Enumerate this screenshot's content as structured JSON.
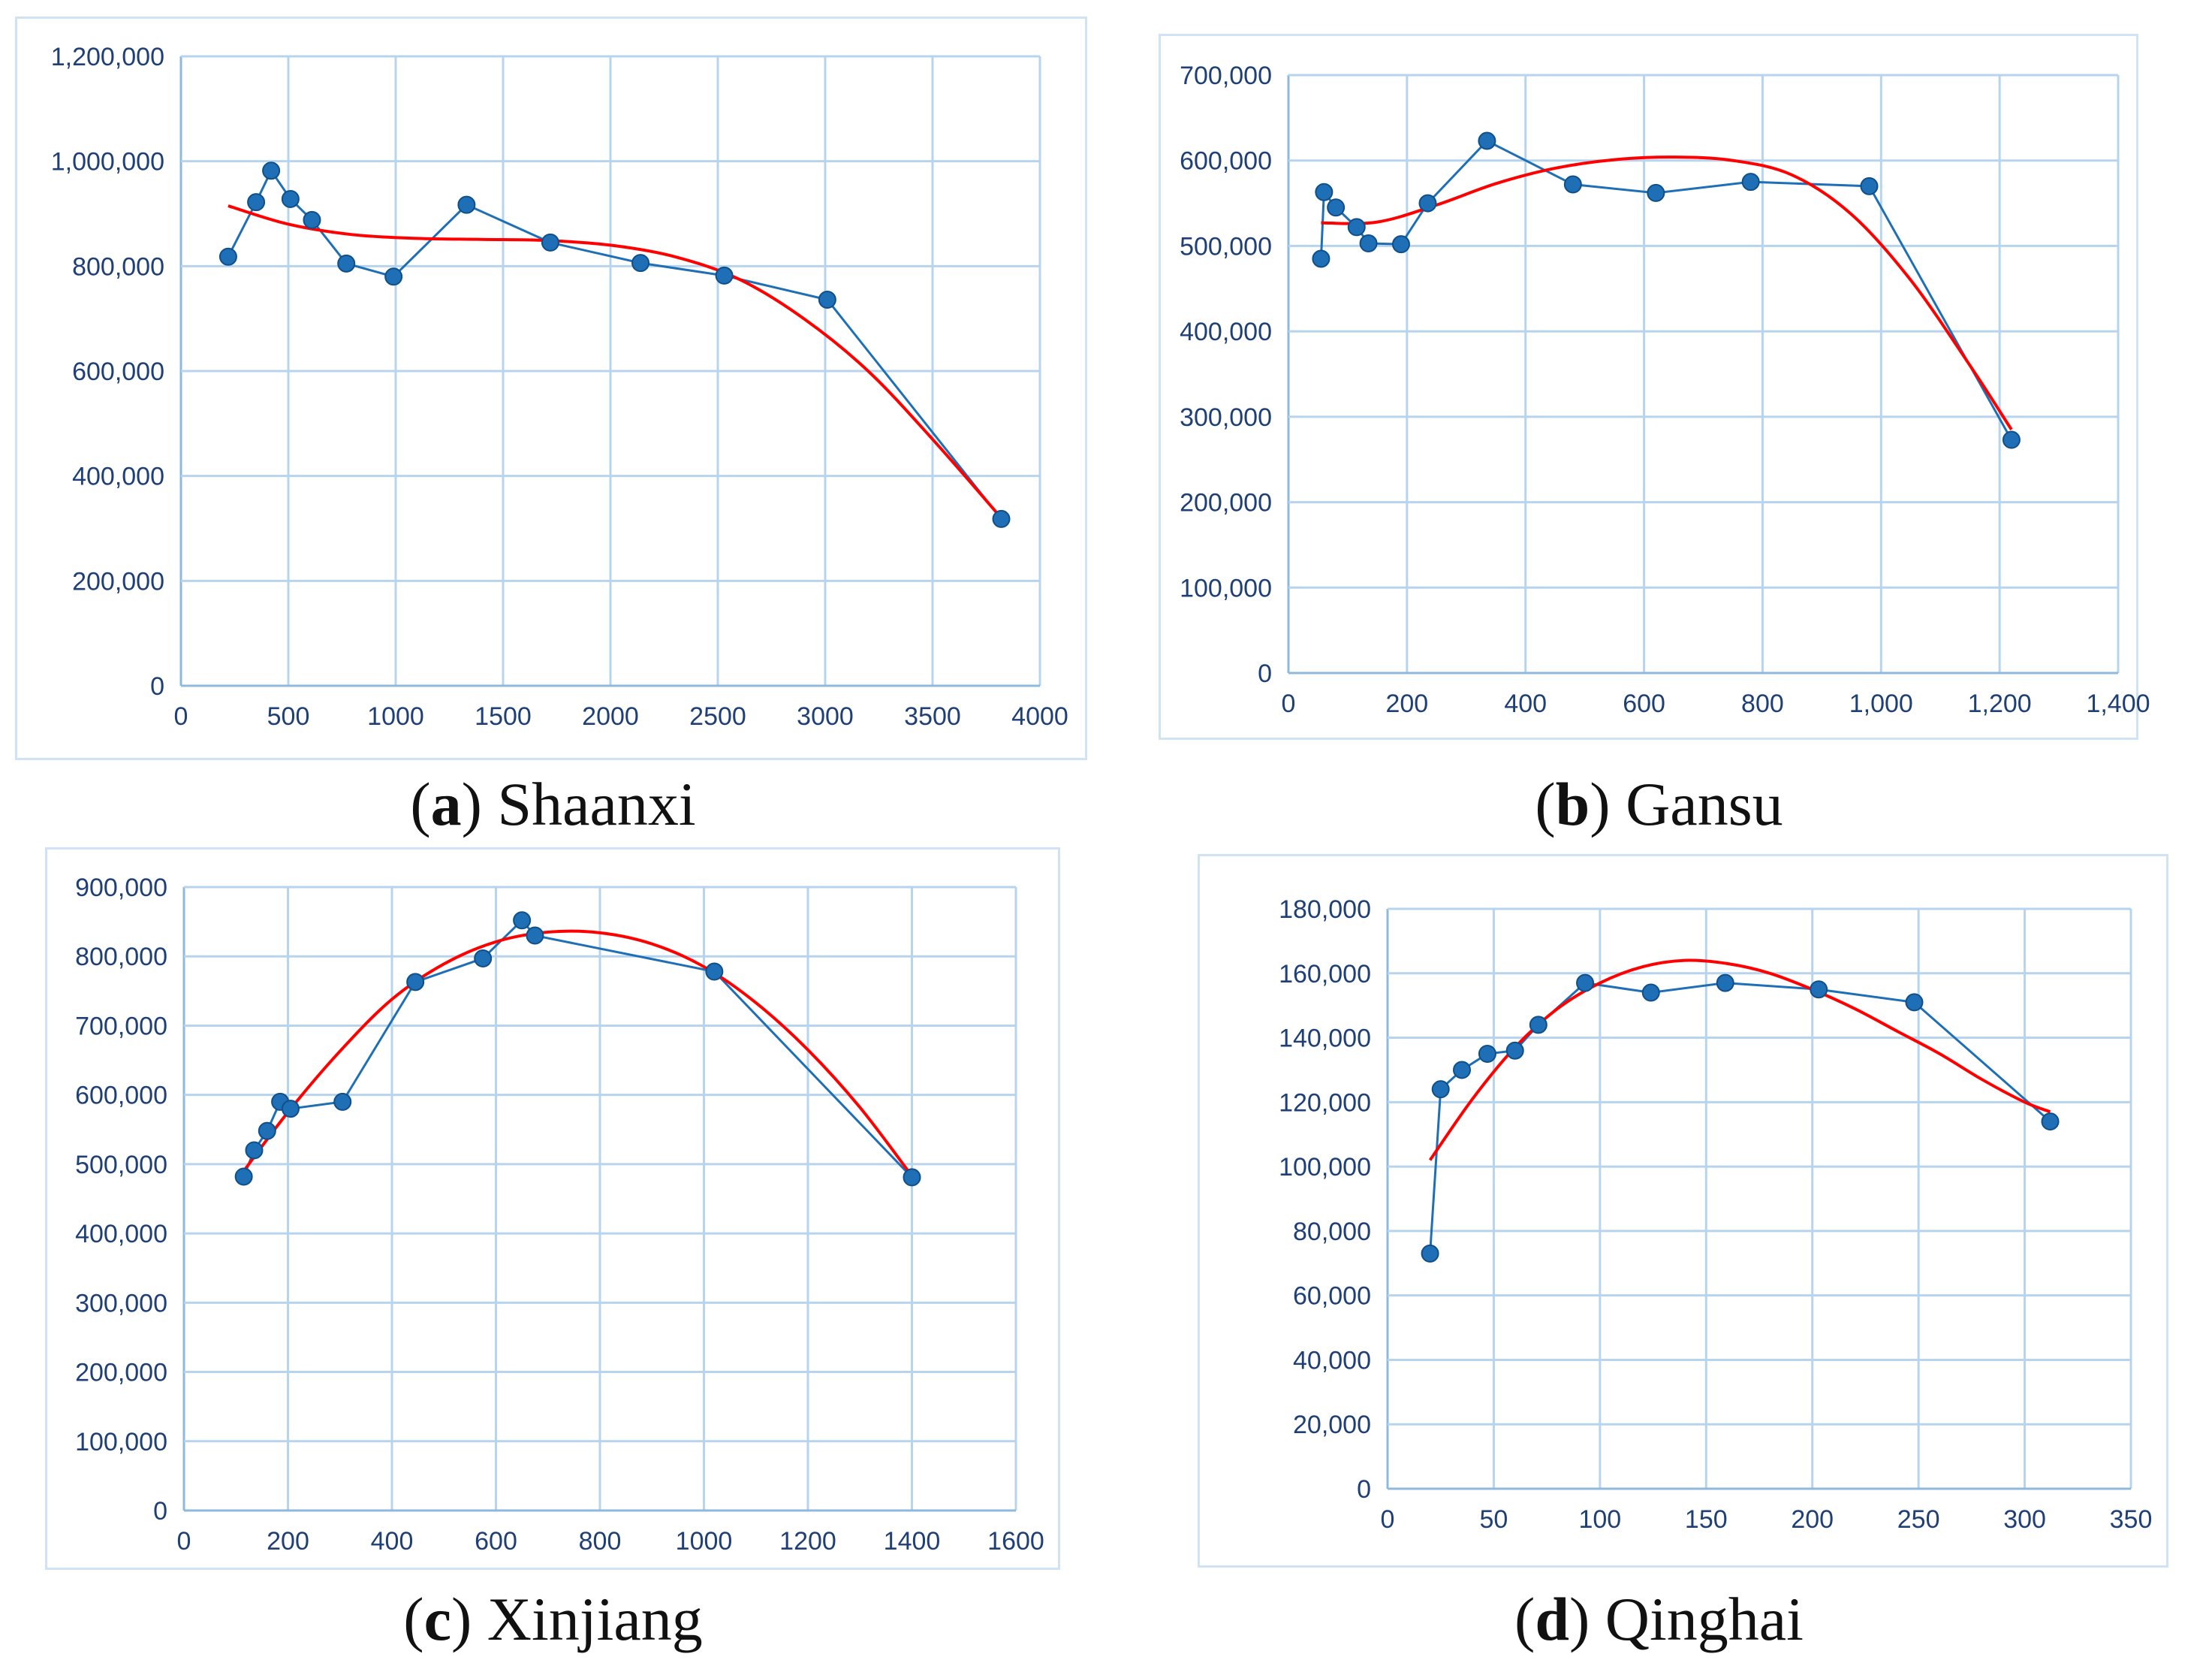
{
  "chart_data": [
    {
      "type": "scatter",
      "panel_letter": "a",
      "title": "Shaanxi",
      "xlabel": "",
      "ylabel": "",
      "xlim": [
        0,
        4000
      ],
      "ylim": [
        0,
        1200000
      ],
      "x_ticks": [
        "0",
        "500",
        "1000",
        "1500",
        "2000",
        "2500",
        "3000",
        "3500",
        "4000"
      ],
      "x_tick_values": [
        0,
        500,
        1000,
        1500,
        2000,
        2500,
        3000,
        3500,
        4000
      ],
      "y_ticks": [
        "0",
        "200,000",
        "400,000",
        "600,000",
        "800,000",
        "1,000,000",
        "1,200,000"
      ],
      "y_tick_values": [
        0,
        200000,
        400000,
        600000,
        800000,
        1000000,
        1200000
      ],
      "series": [
        {
          "name": "observed",
          "color": "#1e6fb5",
          "x": [
            220,
            350,
            420,
            510,
            610,
            770,
            990,
            1330,
            1720,
            2140,
            2530,
            3010,
            3820
          ],
          "y": [
            818000,
            922000,
            982000,
            928000,
            888000,
            805000,
            780000,
            917000,
            845000,
            806000,
            782000,
            736000,
            318000
          ]
        },
        {
          "name": "fit",
          "color": "#ff0000",
          "style": "curve",
          "x": [
            220,
            500,
            800,
            1100,
            1400,
            1700,
            2000,
            2300,
            2600,
            2900,
            3200,
            3500,
            3820
          ],
          "y": [
            915000,
            880000,
            860000,
            853000,
            851000,
            849000,
            840000,
            818000,
            775000,
            700000,
            600000,
            470000,
            320000
          ]
        }
      ]
    },
    {
      "type": "scatter",
      "panel_letter": "b",
      "title": "Gansu",
      "xlabel": "",
      "ylabel": "",
      "xlim": [
        0,
        1400
      ],
      "ylim": [
        0,
        700000
      ],
      "x_ticks": [
        "0",
        "200",
        "400",
        "600",
        "800",
        "1,000",
        "1,200",
        "1,400"
      ],
      "x_tick_values": [
        0,
        200,
        400,
        600,
        800,
        1000,
        1200,
        1400
      ],
      "y_ticks": [
        "0",
        "100,000",
        "200,000",
        "300,000",
        "400,000",
        "500,000",
        "600,000",
        "700,000"
      ],
      "y_tick_values": [
        0,
        100000,
        200000,
        300000,
        400000,
        500000,
        600000,
        700000
      ],
      "series": [
        {
          "name": "observed",
          "color": "#1e6fb5",
          "x": [
            55,
            60,
            80,
            115,
            135,
            190,
            235,
            335,
            480,
            620,
            780,
            980,
            1220
          ],
          "y": [
            485000,
            563000,
            545000,
            522000,
            503000,
            502000,
            550000,
            623000,
            572000,
            562000,
            575000,
            570000,
            273000
          ]
        },
        {
          "name": "fit",
          "color": "#ff0000",
          "style": "curve",
          "x": [
            55,
            150,
            250,
            350,
            450,
            550,
            650,
            750,
            850,
            950,
            1050,
            1150,
            1220
          ],
          "y": [
            527000,
            528000,
            548000,
            573000,
            591000,
            601000,
            604000,
            600000,
            583000,
            537000,
            460000,
            360000,
            285000
          ]
        }
      ]
    },
    {
      "type": "scatter",
      "panel_letter": "c",
      "title": "Xinjiang",
      "xlabel": "",
      "ylabel": "",
      "xlim": [
        0,
        1600
      ],
      "ylim": [
        0,
        900000
      ],
      "x_ticks": [
        "0",
        "200",
        "400",
        "600",
        "800",
        "1000",
        "1200",
        "1400",
        "1600"
      ],
      "x_tick_values": [
        0,
        200,
        400,
        600,
        800,
        1000,
        1200,
        1400,
        1600
      ],
      "y_ticks": [
        "0",
        "100,000",
        "200,000",
        "300,000",
        "400,000",
        "500,000",
        "600,000",
        "700,000",
        "800,000",
        "900,000"
      ],
      "y_tick_values": [
        0,
        100000,
        200000,
        300000,
        400000,
        500000,
        600000,
        700000,
        800000,
        900000
      ],
      "series": [
        {
          "name": "observed",
          "color": "#1e6fb5",
          "x": [
            115,
            135,
            160,
            185,
            205,
            305,
            445,
            575,
            650,
            675,
            1020,
            1400
          ],
          "y": [
            482000,
            520000,
            548000,
            590000,
            580000,
            590000,
            763000,
            797000,
            852000,
            830000,
            778000,
            481000
          ]
        },
        {
          "name": "fit",
          "color": "#ff0000",
          "style": "curve",
          "x": [
            115,
            200,
            300,
            400,
            500,
            600,
            700,
            800,
            900,
            1000,
            1100,
            1200,
            1300,
            1400
          ],
          "y": [
            490000,
            575000,
            663000,
            738000,
            789000,
            821000,
            835000,
            834000,
            818000,
            785000,
            733000,
            665000,
            582000,
            483000
          ]
        }
      ]
    },
    {
      "type": "scatter",
      "panel_letter": "d",
      "title": "Qinghai",
      "xlabel": "",
      "ylabel": "",
      "xlim": [
        0,
        350
      ],
      "ylim": [
        0,
        180000
      ],
      "x_ticks": [
        "0",
        "50",
        "100",
        "150",
        "200",
        "250",
        "300",
        "350"
      ],
      "x_tick_values": [
        0,
        50,
        100,
        150,
        200,
        250,
        300,
        350
      ],
      "y_ticks": [
        "0",
        "20,000",
        "40,000",
        "60,000",
        "80,000",
        "100,000",
        "120,000",
        "140,000",
        "160,000",
        "180,000"
      ],
      "y_tick_values": [
        0,
        20000,
        40000,
        60000,
        80000,
        100000,
        120000,
        140000,
        160000,
        180000
      ],
      "series": [
        {
          "name": "observed",
          "color": "#1e6fb5",
          "x": [
            20,
            25,
            35,
            47,
            60,
            71,
            93,
            124,
            159,
            203,
            248,
            312
          ],
          "y": [
            73000,
            124000,
            130000,
            135000,
            136000,
            144000,
            157000,
            154000,
            157000,
            155000,
            151000,
            114000
          ]
        },
        {
          "name": "fit",
          "color": "#ff0000",
          "style": "curve",
          "x": [
            20,
            40,
            60,
            80,
            100,
            120,
            140,
            160,
            180,
            200,
            220,
            240,
            260,
            280,
            300,
            312
          ],
          "y": [
            102000,
            121000,
            137000,
            149000,
            157000,
            162000,
            164000,
            163000,
            160000,
            155000,
            149000,
            142000,
            135000,
            127000,
            120000,
            117000
          ]
        }
      ]
    }
  ]
}
